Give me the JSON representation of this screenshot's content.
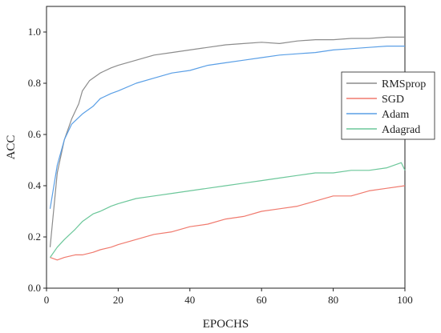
{
  "chart_data": {
    "type": "line",
    "title": "",
    "xlabel": "EPOCHS",
    "ylabel": "ACC",
    "xlim": [
      0,
      100
    ],
    "ylim": [
      0,
      1.1
    ],
    "xticks": [
      0,
      20,
      40,
      60,
      80,
      100
    ],
    "yticks": [
      0.0,
      0.2,
      0.4,
      0.6,
      0.8,
      1.0
    ],
    "xtick_labels": [
      "0",
      "20",
      "40",
      "60",
      "80",
      "100"
    ],
    "ytick_labels": [
      "0.0",
      "0.2",
      "0.4",
      "0.6",
      "0.8",
      "1.0"
    ],
    "grid": false,
    "legend": "right",
    "series": [
      {
        "name": "RMSprop",
        "color": "#8c8c8c",
        "x": [
          1,
          3,
          5,
          7,
          9,
          10,
          12,
          15,
          18,
          20,
          25,
          30,
          35,
          40,
          45,
          50,
          55,
          60,
          65,
          70,
          75,
          80,
          85,
          90,
          95,
          100
        ],
        "y": [
          0.16,
          0.45,
          0.58,
          0.66,
          0.72,
          0.77,
          0.81,
          0.84,
          0.86,
          0.87,
          0.89,
          0.91,
          0.92,
          0.93,
          0.94,
          0.95,
          0.955,
          0.96,
          0.955,
          0.965,
          0.97,
          0.97,
          0.975,
          0.975,
          0.98,
          0.98
        ]
      },
      {
        "name": "SGD",
        "color": "#f07a6e",
        "x": [
          1,
          3,
          5,
          8,
          10,
          13,
          15,
          18,
          20,
          25,
          30,
          35,
          40,
          45,
          50,
          55,
          60,
          65,
          70,
          75,
          80,
          85,
          90,
          95,
          100
        ],
        "y": [
          0.12,
          0.11,
          0.12,
          0.13,
          0.13,
          0.14,
          0.15,
          0.16,
          0.17,
          0.19,
          0.21,
          0.22,
          0.24,
          0.25,
          0.27,
          0.28,
          0.3,
          0.31,
          0.32,
          0.34,
          0.36,
          0.36,
          0.38,
          0.39,
          0.4
        ]
      },
      {
        "name": "Adam",
        "color": "#5a9fe6",
        "x": [
          1,
          3,
          5,
          7,
          10,
          13,
          15,
          18,
          20,
          25,
          30,
          35,
          40,
          45,
          50,
          55,
          60,
          65,
          70,
          75,
          80,
          85,
          90,
          95,
          100
        ],
        "y": [
          0.31,
          0.48,
          0.58,
          0.64,
          0.68,
          0.71,
          0.74,
          0.76,
          0.77,
          0.8,
          0.82,
          0.84,
          0.85,
          0.87,
          0.88,
          0.89,
          0.9,
          0.91,
          0.915,
          0.92,
          0.93,
          0.935,
          0.94,
          0.945,
          0.945
        ]
      },
      {
        "name": "Adagrad",
        "color": "#6cc79a",
        "x": [
          1,
          3,
          5,
          8,
          10,
          13,
          15,
          18,
          20,
          25,
          30,
          35,
          40,
          45,
          50,
          55,
          60,
          65,
          70,
          75,
          80,
          85,
          90,
          95,
          99,
          100
        ],
        "y": [
          0.12,
          0.16,
          0.19,
          0.23,
          0.26,
          0.29,
          0.3,
          0.32,
          0.33,
          0.35,
          0.36,
          0.37,
          0.38,
          0.39,
          0.4,
          0.41,
          0.42,
          0.43,
          0.44,
          0.45,
          0.45,
          0.46,
          0.46,
          0.47,
          0.49,
          0.46
        ]
      }
    ]
  }
}
